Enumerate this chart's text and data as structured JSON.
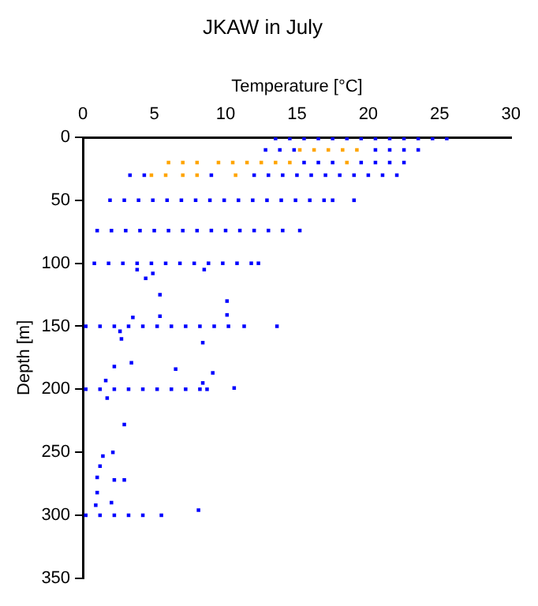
{
  "chart_data": {
    "type": "scatter",
    "title": "JKAW in July",
    "xlabel": "Temperature [°C]",
    "ylabel": "Depth [m]",
    "xlim": [
      0,
      30
    ],
    "xticks": [
      0,
      5,
      10,
      15,
      20,
      25,
      30
    ],
    "ylim": [
      350,
      0
    ],
    "yticks": [
      0,
      50,
      100,
      150,
      200,
      250,
      300,
      350
    ],
    "grid": false,
    "legend": false,
    "marker": "square",
    "series": [
      {
        "color": "#0000ff",
        "x": [
          13.5,
          14.5,
          15.5,
          16.5,
          17.5,
          18.5,
          19.5,
          20.5,
          21.5,
          22.5,
          23.5,
          24.5,
          25.5,
          12.8,
          13.8,
          14.8,
          20.5,
          21.5,
          22.5,
          23.5,
          15.5,
          16.5,
          17.5,
          19.5,
          20.5,
          21.5,
          22.5,
          3.3,
          4.3,
          9,
          12,
          13,
          14,
          15,
          16,
          17,
          18,
          19,
          20,
          21,
          22,
          1.9,
          2.9,
          3.9,
          4.9,
          5.9,
          6.9,
          7.9,
          8.9,
          9.9,
          10.9,
          11.9,
          12.9,
          13.9,
          14.9,
          15.9,
          16.9,
          17.5,
          19,
          1,
          2,
          3,
          4,
          5,
          6,
          7,
          8,
          9,
          10,
          11,
          12,
          13,
          14,
          15.2,
          0.8,
          1.8,
          2.8,
          3.8,
          4.8,
          5.8,
          6.8,
          7.8,
          8.8,
          9.8,
          10.8,
          11.8,
          12.3,
          0.2,
          1.2,
          2.2,
          3.2,
          4.2,
          5.2,
          6.2,
          7.2,
          8.2,
          9.2,
          10.2,
          11.3,
          13.6,
          0.2,
          1.2,
          2.2,
          3.2,
          4.2,
          5.2,
          6.2,
          7.2,
          8.2,
          8.7,
          0.2,
          1.2,
          2.2,
          3.2,
          4.2,
          5.5,
          8.1,
          3.8,
          4.4,
          4.9,
          5.4,
          10.1,
          10.1,
          5.4,
          3.5,
          8.5,
          2.6,
          2.7,
          8.4,
          2.2,
          3.4,
          6.5,
          9.1,
          1.6,
          8.4,
          10.6,
          1.7,
          2.9,
          1.4,
          2.1,
          1.2,
          1.0,
          2.2,
          2.9,
          1.0,
          2.0,
          0.9
        ],
        "values": [
          1,
          1,
          1,
          1,
          1,
          1,
          1,
          1,
          1,
          1,
          1,
          1,
          1,
          10,
          10,
          10,
          10,
          10,
          10,
          10,
          20,
          20,
          20,
          20,
          20,
          20,
          20,
          30,
          30,
          30,
          30,
          30,
          30,
          30,
          30,
          30,
          30,
          30,
          30,
          30,
          30,
          50,
          50,
          50,
          50,
          50,
          50,
          50,
          50,
          50,
          50,
          50,
          50,
          50,
          50,
          50,
          50,
          50,
          50,
          74,
          74,
          74,
          74,
          74,
          74,
          74,
          74,
          74,
          74,
          74,
          74,
          74,
          74,
          74,
          100,
          100,
          100,
          100,
          100,
          100,
          100,
          100,
          100,
          100,
          100,
          100,
          100,
          150,
          150,
          150,
          150,
          150,
          150,
          150,
          150,
          150,
          150,
          150,
          150,
          150,
          200,
          200,
          200,
          200,
          200,
          200,
          200,
          200,
          200,
          200,
          300,
          300,
          300,
          300,
          300,
          300,
          296,
          105,
          112,
          108,
          125,
          130,
          141,
          142,
          143,
          105,
          154,
          160,
          163,
          182,
          179,
          184,
          187,
          193,
          195,
          199,
          207,
          228,
          253,
          250,
          261,
          270,
          272,
          272,
          282,
          290,
          292
        ]
      },
      {
        "color": "#ffa500",
        "x": [
          15.2,
          16.2,
          17.2,
          18.2,
          19.2,
          6,
          7,
          8,
          9.5,
          10.5,
          11.5,
          12.5,
          13.5,
          14.5,
          18.5,
          4.8,
          5.8,
          7,
          8,
          10.7
        ],
        "values": [
          10,
          10,
          10,
          10,
          10,
          20,
          20,
          20,
          20,
          20,
          20,
          20,
          20,
          20,
          20,
          30,
          30,
          30,
          30,
          30
        ]
      }
    ]
  }
}
